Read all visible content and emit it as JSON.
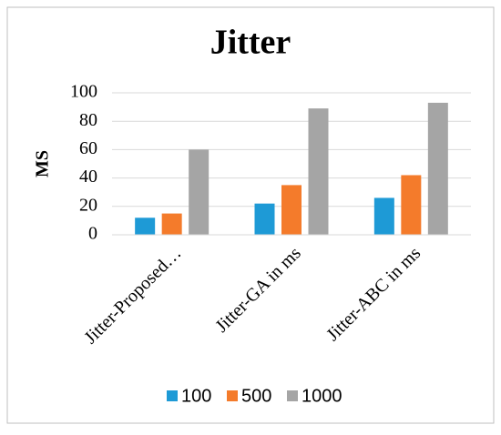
{
  "chart_data": {
    "type": "bar",
    "title": "Jitter",
    "y_label": "MS",
    "categories": [
      "Jitter-Proposed…",
      "Jitter-GA in ms",
      "Jitter-ABC in ms"
    ],
    "series": [
      {
        "name": "100",
        "color": "#1e9ad6",
        "values": [
          12,
          22,
          26
        ]
      },
      {
        "name": "500",
        "color": "#f47b2b",
        "values": [
          15,
          35,
          42
        ]
      },
      {
        "name": "1000",
        "color": "#a5a5a5",
        "values": [
          60,
          89,
          93
        ]
      }
    ],
    "ylim": [
      0,
      100
    ],
    "yticks": [
      0,
      20,
      40,
      60,
      80,
      100
    ],
    "grid": true,
    "legend": "bottom"
  }
}
